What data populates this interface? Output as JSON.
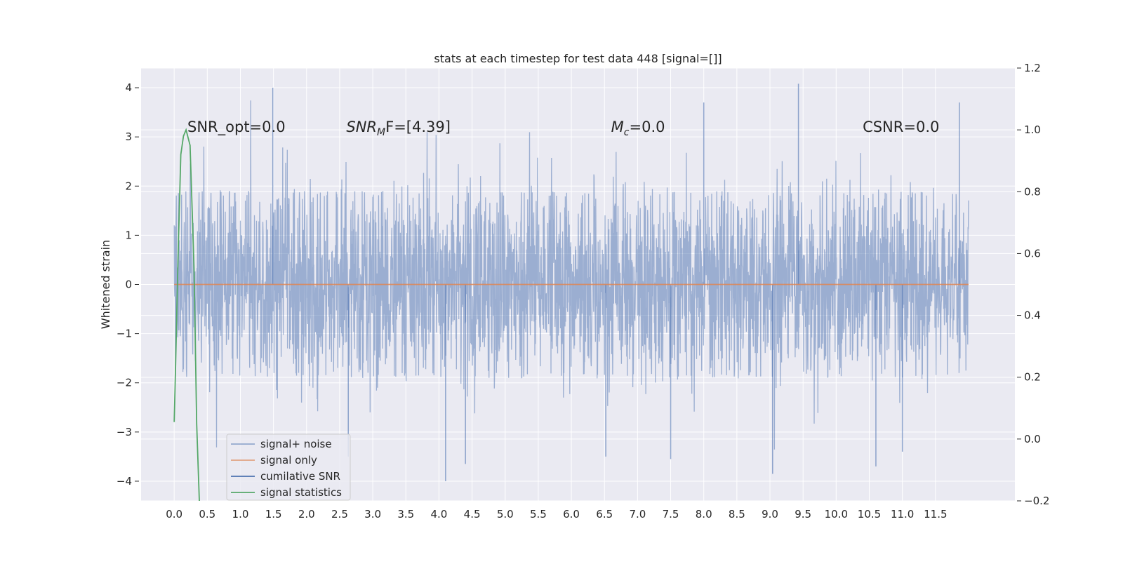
{
  "chart_data": {
    "type": "line",
    "title": "stats at each timestep for test data 448 [signal=[]]",
    "xlabel": "",
    "ylabel": "Whitened strain",
    "xlim": [
      -0.5,
      12.7
    ],
    "ylim": [
      -4.4,
      4.4
    ],
    "x_ticks": [
      "0.0",
      "0.5",
      "1.0",
      "1.5",
      "2.0",
      "2.5",
      "3.0",
      "3.5",
      "4.0",
      "4.5",
      "5.0",
      "5.5",
      "6.0",
      "6.5",
      "7.0",
      "7.5",
      "8.0",
      "8.5",
      "9.0",
      "9.5",
      "10.0",
      "10.5",
      "11.0",
      "11.5"
    ],
    "y_ticks": [
      "4",
      "3",
      "2",
      "1",
      "0",
      "−1",
      "−2",
      "−3",
      "−4"
    ],
    "y_tick_values": [
      4,
      3,
      2,
      1,
      0,
      -1,
      -2,
      -3,
      -4
    ],
    "y2lim": [
      -0.2,
      1.2
    ],
    "y2_ticks": [
      "1.2",
      "1.0",
      "0.8",
      "0.6",
      "0.4",
      "0.2",
      "0.0",
      "−0.2"
    ],
    "y2_tick_values": [
      1.2,
      1.0,
      0.8,
      0.6,
      0.4,
      0.2,
      0.0,
      -0.2
    ],
    "grid": true,
    "legend_placement": "lower-left",
    "annotations": [
      {
        "text": "SNR_opt=0.0",
        "x": 0.2,
        "y": 3.2
      },
      {
        "text": "SNR",
        "sub": "M",
        "suffix": "F=[4.39]",
        "x": 2.6,
        "y": 3.2
      },
      {
        "text": "M",
        "sub": "c",
        "suffix": "=0.0",
        "x": 6.6,
        "y": 3.2
      },
      {
        "text": "CSNR=0.0",
        "x": 10.4,
        "y": 3.2
      }
    ],
    "series": [
      {
        "name": "signal+ noise",
        "color": "#4c72b0",
        "axis": "left",
        "style": "noise",
        "x_range": [
          0.0,
          12.0
        ],
        "envelope_typical": [
          -1.9,
          1.9
        ],
        "extremes": [
          {
            "x": 1.49,
            "y": 4.0
          },
          {
            "x": 9.43,
            "y": 4.08
          },
          {
            "x": 11.86,
            "y": 3.7
          },
          {
            "x": 8.0,
            "y": 3.7
          },
          {
            "x": 4.1,
            "y": -4.0
          },
          {
            "x": 9.04,
            "y": -3.85
          },
          {
            "x": 10.6,
            "y": -3.7
          },
          {
            "x": 4.4,
            "y": -3.65
          },
          {
            "x": 7.5,
            "y": -3.55
          },
          {
            "x": 2.63,
            "y": -3.5
          },
          {
            "x": 6.52,
            "y": -3.5
          },
          {
            "x": 11.0,
            "y": -3.4
          }
        ]
      },
      {
        "name": "signal only",
        "color": "#dd8452",
        "axis": "left",
        "x": [
          0.0,
          12.0
        ],
        "y": [
          0.0,
          0.0
        ]
      },
      {
        "name": "cumilative SNR",
        "color": "#4c72b0",
        "axis": "right",
        "x": [],
        "y": []
      },
      {
        "name": "signal statistics",
        "color": "#55a868",
        "axis": "right",
        "x": [
          0.0,
          0.02,
          0.06,
          0.1,
          0.14,
          0.18,
          0.24,
          0.3,
          0.34,
          0.38
        ],
        "y": [
          0.055,
          0.22,
          0.6,
          0.92,
          0.98,
          1.0,
          0.95,
          0.55,
          0.05,
          -0.2
        ]
      }
    ]
  }
}
